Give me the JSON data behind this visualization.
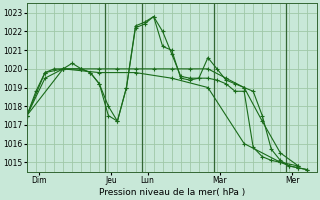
{
  "bg_color": "#c8e8d8",
  "grid_color": "#a0c8a8",
  "line_color": "#1a6b1a",
  "marker_color": "#1a6b1a",
  "xlabel_text": "Pression niveau de la mer( hPa )",
  "ylim": [
    1014.5,
    1023.5
  ],
  "yticks": [
    1015,
    1016,
    1017,
    1018,
    1019,
    1020,
    1021,
    1022,
    1023
  ],
  "xlim": [
    0,
    192
  ],
  "day_labels": [
    "Dim",
    "Jeu",
    "Lun",
    "Mar",
    "Mer"
  ],
  "day_positions": [
    8,
    56,
    80,
    128,
    176
  ],
  "vline_positions": [
    52,
    76,
    124,
    172
  ],
  "series": [
    {
      "x": [
        0,
        6,
        12,
        18,
        24,
        30,
        36,
        42,
        48,
        54,
        60,
        66,
        72,
        78,
        84,
        90,
        96,
        102,
        108,
        114,
        120,
        126,
        132,
        138,
        144,
        150,
        156,
        162,
        168,
        174,
        180,
        186
      ],
      "y": [
        1017.5,
        1018.8,
        1019.8,
        1020.0,
        1020.0,
        1020.3,
        1020.0,
        1019.8,
        1019.2,
        1017.5,
        1017.2,
        1019.0,
        1022.3,
        1022.5,
        1022.8,
        1021.2,
        1021.0,
        1019.5,
        1019.4,
        1019.5,
        1020.6,
        1020.0,
        1019.4,
        1019.2,
        1019.0,
        1018.8,
        1017.5,
        1015.7,
        1015.1,
        1014.8,
        1014.7,
        1014.6
      ]
    },
    {
      "x": [
        0,
        12,
        24,
        36,
        48,
        60,
        72,
        84,
        96,
        108,
        120,
        132,
        144,
        156,
        168,
        180
      ],
      "y": [
        1017.5,
        1019.5,
        1020.0,
        1020.0,
        1020.0,
        1020.0,
        1020.0,
        1020.0,
        1020.0,
        1020.0,
        1020.0,
        1019.5,
        1019.0,
        1017.2,
        1015.5,
        1014.8
      ]
    },
    {
      "x": [
        0,
        24,
        48,
        72,
        96,
        120,
        144,
        168,
        180
      ],
      "y": [
        1017.5,
        1020.0,
        1019.8,
        1019.8,
        1019.5,
        1019.0,
        1016.0,
        1015.0,
        1014.8
      ]
    },
    {
      "x": [
        0,
        12,
        24,
        36,
        42,
        48,
        54,
        60,
        66,
        72,
        78,
        84,
        90,
        96,
        102,
        108,
        114,
        120,
        126,
        132,
        138,
        144,
        150,
        156,
        162,
        168,
        174,
        180,
        186
      ],
      "y": [
        1017.5,
        1019.8,
        1020.0,
        1020.0,
        1019.8,
        1019.2,
        1018.0,
        1017.2,
        1019.0,
        1022.2,
        1022.4,
        1022.8,
        1022.0,
        1020.8,
        1019.6,
        1019.5,
        1019.5,
        1019.5,
        1019.4,
        1019.2,
        1018.8,
        1018.8,
        1015.8,
        1015.3,
        1015.1,
        1015.0,
        1014.8,
        1014.7,
        1014.6
      ]
    }
  ]
}
